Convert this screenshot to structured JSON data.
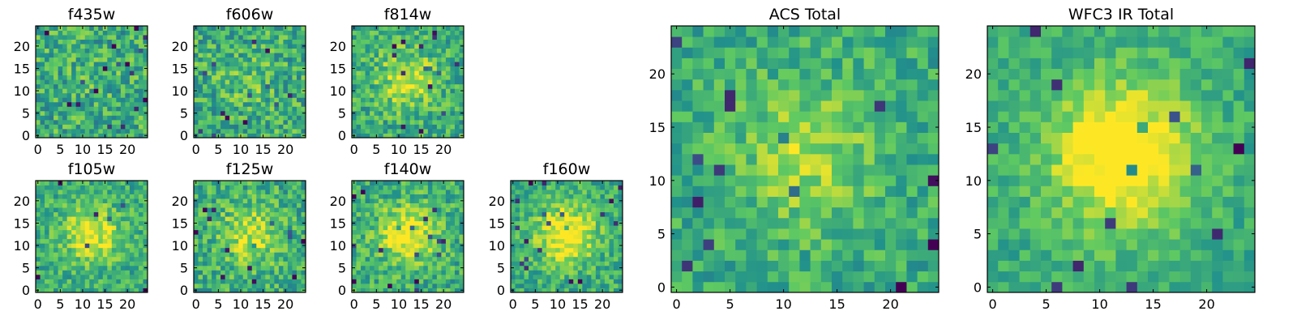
{
  "chart_data": [
    {
      "type": "heatmap",
      "title": "f435w",
      "xticks": [
        0,
        5,
        10,
        15,
        20
      ],
      "yticks": [
        0,
        5,
        10,
        15,
        20
      ],
      "xlim": [
        -0.5,
        24.5
      ],
      "ylim": [
        -0.5,
        24.5
      ],
      "grid_size": 25,
      "center_strength": 0.05,
      "noise": 0.45,
      "seed": 11
    },
    {
      "type": "heatmap",
      "title": "f606w",
      "xticks": [
        0,
        5,
        10,
        15,
        20
      ],
      "yticks": [
        0,
        5,
        10,
        15,
        20
      ],
      "xlim": [
        -0.5,
        24.5
      ],
      "ylim": [
        -0.5,
        24.5
      ],
      "grid_size": 25,
      "center_strength": 0.1,
      "noise": 0.45,
      "seed": 23
    },
    {
      "type": "heatmap",
      "title": "f814w",
      "xticks": [
        0,
        5,
        10,
        15,
        20
      ],
      "yticks": [
        0,
        5,
        10,
        15,
        20
      ],
      "xlim": [
        -0.5,
        24.5
      ],
      "ylim": [
        -0.5,
        24.5
      ],
      "grid_size": 25,
      "center_strength": 0.3,
      "noise": 0.4,
      "seed": 37
    },
    {
      "type": "heatmap",
      "title": "f105w",
      "xticks": [
        0,
        5,
        10,
        15,
        20
      ],
      "yticks": [
        0,
        5,
        10,
        15,
        20
      ],
      "xlim": [
        -0.5,
        24.5
      ],
      "ylim": [
        -0.5,
        24.5
      ],
      "grid_size": 25,
      "center_strength": 0.35,
      "noise": 0.35,
      "seed": 41
    },
    {
      "type": "heatmap",
      "title": "f125w",
      "xticks": [
        0,
        5,
        10,
        15,
        20
      ],
      "yticks": [
        0,
        5,
        10,
        15,
        20
      ],
      "xlim": [
        -0.5,
        24.5
      ],
      "ylim": [
        -0.5,
        24.5
      ],
      "grid_size": 25,
      "center_strength": 0.3,
      "noise": 0.4,
      "seed": 53
    },
    {
      "type": "heatmap",
      "title": "f140w",
      "xticks": [
        0,
        5,
        10,
        15,
        20
      ],
      "yticks": [
        0,
        5,
        10,
        15,
        20
      ],
      "xlim": [
        -0.5,
        24.5
      ],
      "ylim": [
        -0.5,
        24.5
      ],
      "grid_size": 25,
      "center_strength": 0.4,
      "noise": 0.38,
      "seed": 67
    },
    {
      "type": "heatmap",
      "title": "f160w",
      "xticks": [
        0,
        5,
        10,
        15,
        20
      ],
      "yticks": [
        0,
        5,
        10,
        15,
        20
      ],
      "xlim": [
        -0.5,
        24.5
      ],
      "ylim": [
        -0.5,
        24.5
      ],
      "grid_size": 25,
      "center_strength": 0.45,
      "noise": 0.35,
      "seed": 79
    },
    {
      "type": "heatmap",
      "title": "ACS Total",
      "xticks": [
        0,
        5,
        10,
        15,
        20
      ],
      "yticks": [
        0,
        5,
        10,
        15,
        20
      ],
      "xlim": [
        -0.5,
        24.5
      ],
      "ylim": [
        -0.5,
        24.5
      ],
      "grid_size": 25,
      "center_strength": 0.25,
      "noise": 0.32,
      "seed": 89
    },
    {
      "type": "heatmap",
      "title": "WFC3 IR Total",
      "xticks": [
        0,
        5,
        10,
        15,
        20
      ],
      "yticks": [
        0,
        5,
        10,
        15,
        20
      ],
      "xlim": [
        -0.5,
        24.5
      ],
      "ylim": [
        -0.5,
        24.5
      ],
      "grid_size": 25,
      "center_strength": 0.55,
      "noise": 0.25,
      "seed": 97
    }
  ],
  "colormap": [
    "#440154",
    "#3b528b",
    "#21918c",
    "#5ec962",
    "#fde725"
  ]
}
